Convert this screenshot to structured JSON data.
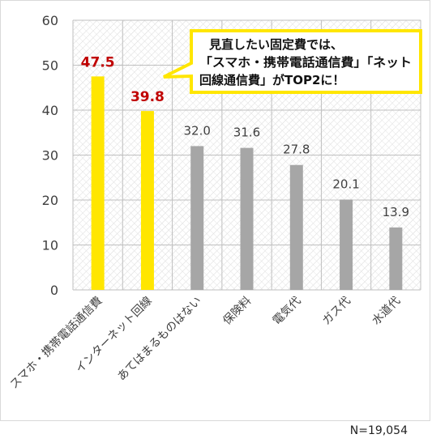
{
  "chart_data": {
    "type": "bar",
    "categories": [
      "スマホ・携帯電話通信費",
      "インターネット回線",
      "あてはまるものはない",
      "保険料",
      "電気代",
      "ガス代",
      "水道代"
    ],
    "values": [
      47.5,
      39.8,
      32.0,
      31.6,
      27.8,
      20.1,
      13.9
    ],
    "value_labels": [
      "47.5",
      "39.8",
      "32.0",
      "31.6",
      "27.8",
      "20.1",
      "13.9"
    ],
    "highlight_count": 2,
    "ylim": [
      0,
      60
    ],
    "yticks": [
      "0",
      "10",
      "20",
      "30",
      "40",
      "50",
      "60"
    ],
    "grid": true,
    "colors": {
      "highlight": "#ffe600",
      "normal": "#a6a6a6",
      "highlight_label": "#c00000",
      "normal_label": "#404040",
      "callout_border": "#ffe600"
    },
    "callout": {
      "lines": [
        "見直したい固定費では、",
        "「スマホ・携帯電話通信費」「ネット",
        "回線通信費」がTOP2に！"
      ]
    }
  },
  "note": "N=19,054"
}
